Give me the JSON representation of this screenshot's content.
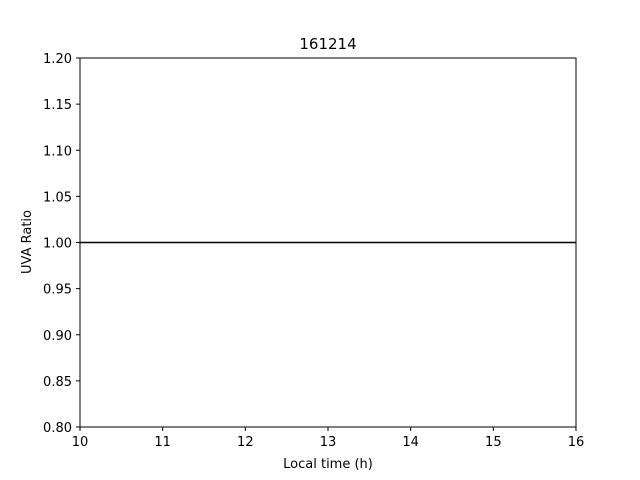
{
  "chart_data": {
    "type": "line",
    "title": "161214",
    "xlabel": "Local time (h)",
    "ylabel": "UVA Ratio",
    "xlim": [
      10,
      16
    ],
    "ylim": [
      0.8,
      1.2
    ],
    "xticks": [
      10,
      11,
      12,
      13,
      14,
      15,
      16
    ],
    "xtick_labels": [
      "10",
      "11",
      "12",
      "13",
      "14",
      "15",
      "16"
    ],
    "yticks": [
      0.8,
      0.85,
      0.9,
      0.95,
      1.0,
      1.05,
      1.1,
      1.15,
      1.2
    ],
    "ytick_labels": [
      "0.80",
      "0.85",
      "0.90",
      "0.95",
      "1.00",
      "1.05",
      "1.10",
      "1.15",
      "1.20"
    ],
    "grid": false,
    "series": [
      {
        "x": [
          10,
          16
        ],
        "y": [
          1.0,
          1.0
        ],
        "color": "#000000"
      }
    ]
  }
}
